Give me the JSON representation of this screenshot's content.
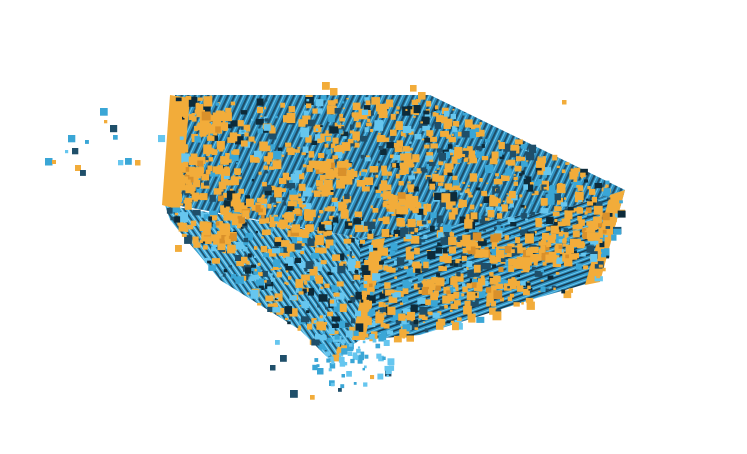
{
  "scene": {
    "background_color": "#ffffff",
    "colors": {
      "blue_primary": "#3aa6d6",
      "blue_light": "#66c6ef",
      "blue_dark": "#1f4f6a",
      "blue_shadow": "#0d2b3a",
      "orange": "#f2ac3a",
      "orange_dark": "#d9902a"
    },
    "object": "voxel-block"
  }
}
